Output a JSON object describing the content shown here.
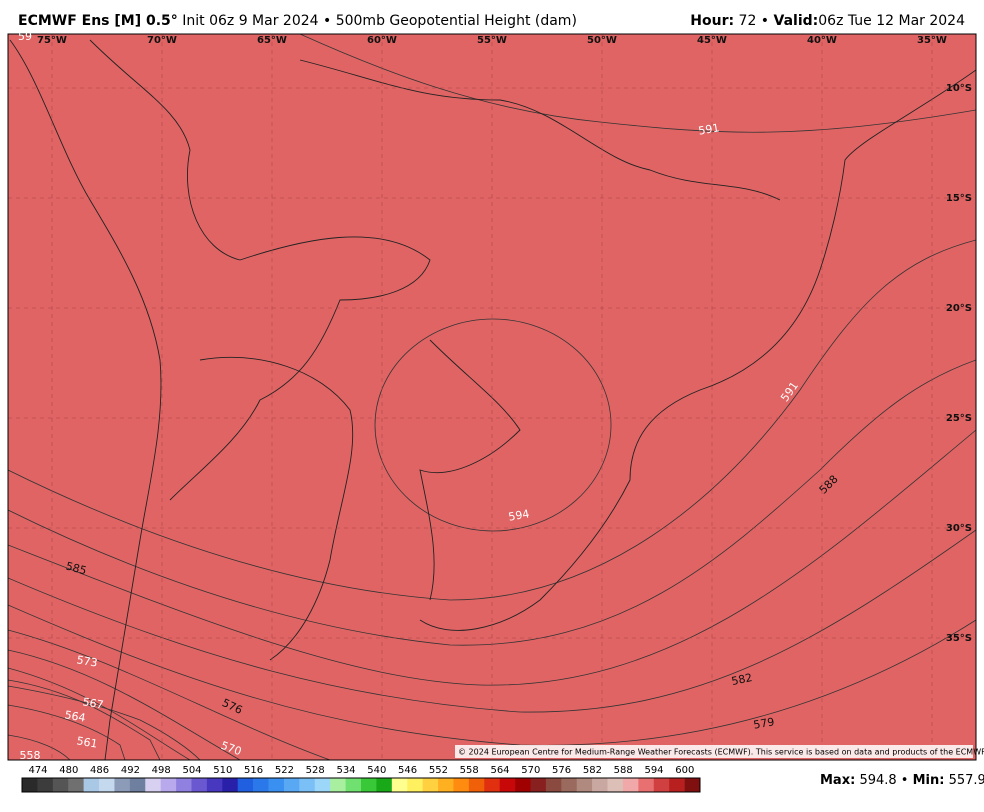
{
  "header": {
    "title": "ECMWF Ens [M] 0.5°",
    "init": "Init 06z 9 Mar 2024 • 500mb Geopotential Height (dam)",
    "hour_label": "Hour:",
    "hour": "72 •",
    "valid_label": "Valid:",
    "valid": "06z Tue 12 Mar 2024"
  },
  "map": {
    "longitudes": [
      "75°W",
      "70°W",
      "65°W",
      "60°W",
      "55°W",
      "50°W",
      "45°W",
      "40°W",
      "35°W"
    ],
    "latitudes": [
      "10°S",
      "15°S",
      "20°S",
      "25°S",
      "30°S",
      "35°S"
    ],
    "contour_labels": [
      "591",
      "591",
      "594",
      "588",
      "585",
      "582",
      "579",
      "576",
      "573",
      "570",
      "567",
      "564",
      "561",
      "558",
      "59"
    ],
    "copyright": "© 2024 European Centre for Medium-Range Weather Forecasts (ECMWF). This service is based on data and products of the ECMWF."
  },
  "colorbar": {
    "labels": [
      474,
      480,
      486,
      492,
      498,
      504,
      510,
      516,
      522,
      528,
      534,
      540,
      546,
      552,
      558,
      564,
      570,
      576,
      582,
      588,
      594,
      600
    ],
    "colors": [
      "#2a2a2a",
      "#3c3c3c",
      "#555555",
      "#707070",
      "#a8c8e6",
      "#c4d8ee",
      "#8c9cb8",
      "#6f7fa0",
      "#d8d0f0",
      "#b8a8ec",
      "#9080e0",
      "#6a58d0",
      "#4838c0",
      "#2820a8",
      "#2060e0",
      "#2a78ea",
      "#3a90f0",
      "#58a8f4",
      "#7ac0f6",
      "#9cd6f8",
      "#a8f0a0",
      "#70e070",
      "#38c838",
      "#18a818",
      "#ffff90",
      "#fff060",
      "#ffd040",
      "#ffb020",
      "#ff8c10",
      "#f06008",
      "#e03010",
      "#c80808",
      "#a00000",
      "#882020",
      "#8a4a40",
      "#9a6a5e",
      "#b08a7e",
      "#c8a8a0",
      "#dcc0b8",
      "#f0a8a8",
      "#e87070",
      "#d04040",
      "#b82020",
      "#801010"
    ]
  },
  "footer": {
    "max_label": "Max:",
    "max": "594.8 •",
    "min_label": "Min:",
    "min": "557.9"
  }
}
